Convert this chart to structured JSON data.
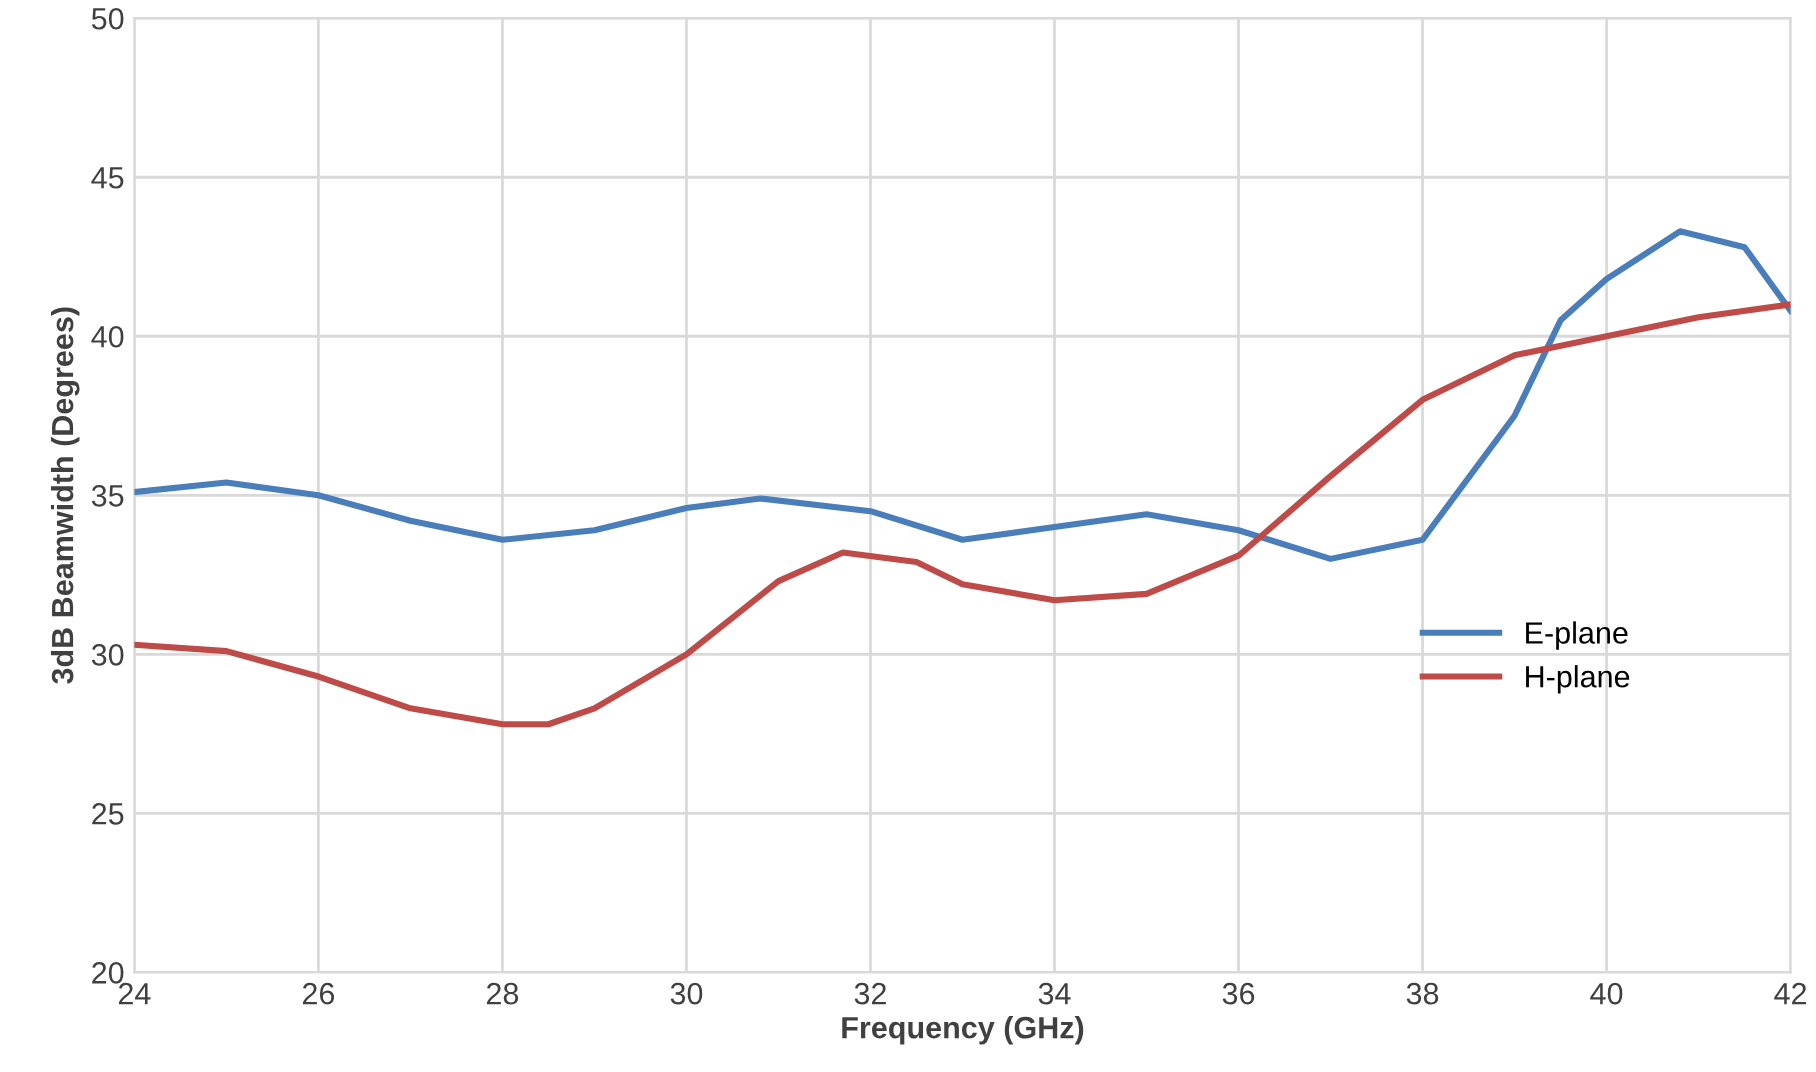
{
  "chart_data": {
    "type": "line",
    "xlabel": "Frequency (GHz)",
    "ylabel": "3dB Beamwidth (Degrees)",
    "xlim": [
      24,
      42
    ],
    "xticks": [
      24,
      26,
      28,
      30,
      32,
      34,
      36,
      38,
      40,
      42
    ],
    "ylim": [
      20,
      50
    ],
    "yticks": [
      20,
      25,
      30,
      35,
      40,
      45,
      50
    ],
    "grid": true,
    "legend": "right",
    "marker": "none",
    "line_style": "solid",
    "series": [
      {
        "name": "E-plane",
        "color": "#4a7ebb",
        "x": [
          24,
          25,
          26,
          27,
          28,
          29,
          30,
          30.8,
          32,
          33,
          34,
          35,
          36,
          37,
          38,
          39,
          39.5,
          40,
          40.8,
          41.5,
          42
        ],
        "values": [
          35.1,
          35.4,
          35.0,
          34.2,
          33.6,
          33.9,
          34.6,
          34.9,
          34.5,
          33.6,
          34.0,
          34.4,
          33.9,
          33.0,
          33.6,
          37.5,
          40.5,
          41.8,
          43.3,
          42.8,
          40.8
        ]
      },
      {
        "name": "H-plane",
        "color": "#be4b48",
        "x": [
          24,
          25,
          26,
          27,
          28,
          28.5,
          29,
          30,
          31,
          31.7,
          32.5,
          33,
          34,
          35,
          36,
          37,
          38,
          39,
          40,
          41,
          42
        ],
        "values": [
          30.3,
          30.1,
          29.3,
          28.3,
          27.8,
          27.8,
          28.3,
          30.0,
          32.3,
          33.2,
          32.9,
          32.2,
          31.7,
          31.9,
          33.1,
          35.6,
          38.0,
          39.4,
          40.0,
          40.6,
          41.0
        ]
      }
    ]
  }
}
